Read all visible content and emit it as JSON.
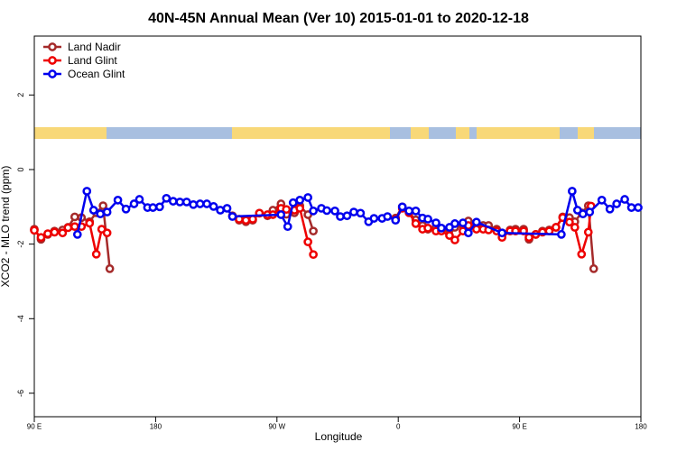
{
  "chart_data": {
    "type": "line",
    "title": "40N-45N Annual Mean (Ver 10)   2015-01-01 to 2020-12-18",
    "x_label": "Longitude",
    "y_label": "XCO2 - MLO trend (ppm)",
    "xlim": [
      90,
      540
    ],
    "ylim": [
      -6.63,
      3.58
    ],
    "xticks": [
      {
        "value": 90,
        "label": "90 E"
      },
      {
        "value": 180,
        "label": "180"
      },
      {
        "value": 270,
        "label": "90 W"
      },
      {
        "value": 360,
        "label": "0"
      },
      {
        "value": 450,
        "label": "90 E"
      },
      {
        "value": 540,
        "label": "180"
      }
    ],
    "yticks": [
      2,
      0,
      -2,
      -4,
      -6
    ],
    "legend": "topleft",
    "series": [
      {
        "name": "Land Nadir",
        "color": "#a52a2a",
        "x": [
          90,
          95,
          100,
          105,
          111,
          115,
          120,
          125,
          131,
          136,
          141,
          146,
          null,
          237,
          242,
          247,
          252,
          257,
          263,
          267,
          273,
          277,
          283,
          287,
          293,
          297,
          null,
          358,
          363,
          368,
          373,
          378,
          382,
          388,
          392,
          398,
          402,
          408,
          412,
          418,
          423,
          427,
          433,
          437,
          443,
          447,
          453,
          457,
          462,
          467,
          472,
          477,
          482,
          487,
          491,
          496,
          501,
          505
        ],
        "values": [
          -1.6,
          -1.87,
          -1.74,
          -1.65,
          -1.62,
          -1.55,
          -1.27,
          -1.29,
          -1.4,
          -1.16,
          -0.97,
          -2.66,
          null,
          -1.24,
          -1.36,
          -1.4,
          -1.36,
          -1.17,
          -1.24,
          -1.09,
          -0.92,
          -1.2,
          -1.16,
          -0.97,
          -1.21,
          -1.65,
          null,
          -1.3,
          -1.0,
          -1.15,
          -1.35,
          -1.5,
          -1.6,
          -1.55,
          -1.6,
          -1.62,
          -1.55,
          -1.5,
          -1.38,
          -1.44,
          -1.5,
          -1.5,
          -1.6,
          -1.7,
          -1.62,
          -1.6,
          -1.6,
          -1.87,
          -1.74,
          -1.65,
          -1.62,
          -1.55,
          -1.27,
          -1.29,
          -1.4,
          -1.16,
          -0.97,
          -2.66
        ]
      },
      {
        "name": "Land Glint",
        "color": "#ee0000",
        "x": [
          90,
          95,
          100,
          105,
          111,
          115,
          120,
          125,
          131,
          136,
          140,
          144,
          null,
          242,
          247,
          252,
          257,
          263,
          267,
          273,
          277,
          283,
          287,
          293,
          297,
          null,
          358,
          363,
          368,
          373,
          378,
          382,
          388,
          392,
          398,
          402,
          408,
          412,
          418,
          423,
          427,
          433,
          437,
          443,
          447,
          453,
          457,
          462,
          467,
          472,
          477,
          482,
          487,
          491,
          496,
          501,
          503
        ],
        "values": [
          -1.63,
          -1.82,
          -1.72,
          -1.68,
          -1.7,
          -1.56,
          -1.53,
          -1.53,
          -1.44,
          -2.27,
          -1.6,
          -1.7,
          null,
          -1.33,
          -1.36,
          -1.33,
          -1.17,
          -1.21,
          -1.21,
          -1.04,
          -1.07,
          -1.09,
          -1.04,
          -1.94,
          -2.28,
          null,
          -1.34,
          -1.04,
          -1.16,
          -1.45,
          -1.6,
          -1.57,
          -1.65,
          -1.65,
          -1.77,
          -1.89,
          -1.65,
          -1.5,
          -1.6,
          -1.6,
          -1.62,
          -1.65,
          -1.82,
          -1.65,
          -1.65,
          -1.65,
          -1.82,
          -1.74,
          -1.68,
          -1.65,
          -1.55,
          -1.29,
          -1.41,
          -1.55,
          -2.27,
          -1.68,
          -0.98
        ]
      },
      {
        "name": "Ocean Glint",
        "color": "#0000ee",
        "x": [
          122,
          129,
          134,
          139,
          144,
          152,
          158,
          164,
          168,
          174,
          178,
          183,
          188,
          193,
          198,
          203,
          208,
          213,
          218,
          223,
          228,
          233,
          237,
          273,
          278,
          282,
          287,
          293,
          297,
          303,
          307,
          313,
          317,
          322,
          327,
          332,
          338,
          342,
          348,
          352,
          358,
          363,
          368,
          373,
          378,
          382,
          388,
          392,
          398,
          402,
          408,
          412,
          418,
          437,
          481,
          489,
          493,
          497,
          502,
          511,
          517,
          522,
          528,
          533,
          538
        ],
        "values": [
          -1.74,
          -0.58,
          -1.09,
          -1.19,
          -1.14,
          -0.82,
          -1.06,
          -0.92,
          -0.8,
          -1.02,
          -1.02,
          -1.0,
          -0.77,
          -0.85,
          -0.87,
          -0.87,
          -0.94,
          -0.92,
          -0.92,
          -0.99,
          -1.09,
          -1.04,
          -1.26,
          -1.21,
          -1.53,
          -0.89,
          -0.82,
          -0.75,
          -1.11,
          -1.04,
          -1.1,
          -1.11,
          -1.26,
          -1.24,
          -1.14,
          -1.17,
          -1.4,
          -1.31,
          -1.31,
          -1.26,
          -1.36,
          -1.0,
          -1.11,
          -1.11,
          -1.3,
          -1.33,
          -1.43,
          -1.57,
          -1.55,
          -1.45,
          -1.43,
          -1.7,
          -1.41,
          -1.7,
          -1.74,
          -0.58,
          -1.09,
          -1.19,
          -1.14,
          -0.82,
          -1.06,
          -0.92,
          -0.8,
          -1.02,
          -1.02
        ]
      }
    ]
  }
}
